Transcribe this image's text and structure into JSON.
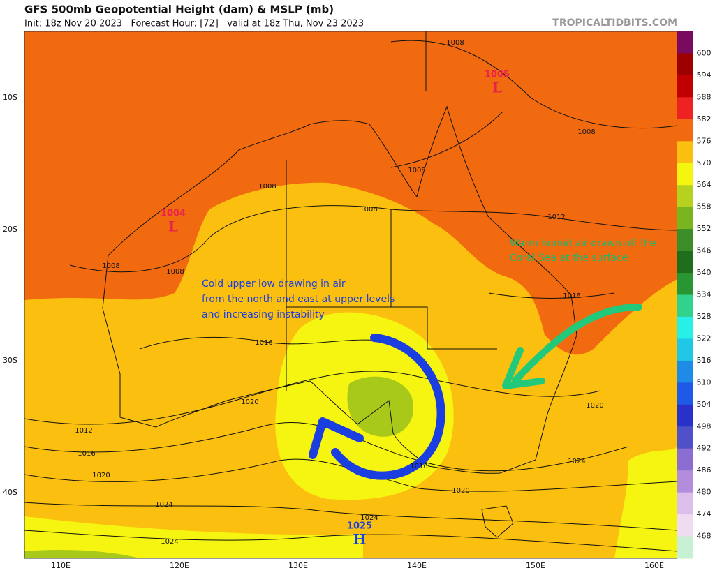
{
  "header": {
    "title": "GFS 500mb Geopotential Height (dam) & MSLP (mb)",
    "subtitle": "Init: 18z Nov 20 2023   Forecast Hour: [72]   valid at 18z Thu, Nov 23 2023",
    "site": "TROPICALTIDBITS.COM"
  },
  "axes": {
    "lat_labels": [
      "10S",
      "20S",
      "30S",
      "40S"
    ],
    "lon_labels": [
      "110E",
      "120E",
      "130E",
      "140E",
      "150E",
      "160E"
    ]
  },
  "colorbar": {
    "labels": [
      "600",
      "594",
      "588",
      "582",
      "576",
      "570",
      "564",
      "558",
      "552",
      "546",
      "540",
      "534",
      "528",
      "522",
      "516",
      "510",
      "504",
      "498",
      "492",
      "486",
      "480",
      "474",
      "468"
    ],
    "colors": [
      "#7a0a5e",
      "#9e0000",
      "#c00000",
      "#ee2222",
      "#f26a10",
      "#fbbf10",
      "#f5f511",
      "#b6d21e",
      "#7ab41e",
      "#3c8c28",
      "#1e6e1e",
      "#289632",
      "#30d28c",
      "#28f0e6",
      "#20c8e6",
      "#1e8ce6",
      "#1e5ae6",
      "#2832c8",
      "#5050c8",
      "#8c6ed2",
      "#b48cdc",
      "#dcbeeb",
      "#f0dcf0",
      "#c8f0d2"
    ]
  },
  "map": {
    "contour_labels": [
      "1008",
      "1008",
      "1008",
      "1008",
      "1008",
      "1012",
      "1008",
      "1008",
      "1016",
      "1016",
      "1020",
      "1012",
      "1016",
      "1020",
      "1020",
      "1024",
      "1020",
      "1024",
      "1024",
      "1024",
      "1016"
    ],
    "centers": [
      {
        "value": "1005",
        "letter": "L"
      },
      {
        "value": "1004",
        "letter": "L"
      },
      {
        "value": "1025",
        "letter": "H"
      }
    ],
    "annotations": [
      {
        "lines": [
          "Cold upper low drawing in air",
          "from the north and east at upper levels",
          "and increasing instability"
        ]
      },
      {
        "lines": [
          "Warm humid air drawn off the",
          "Coral Sea at the surface"
        ]
      }
    ]
  }
}
